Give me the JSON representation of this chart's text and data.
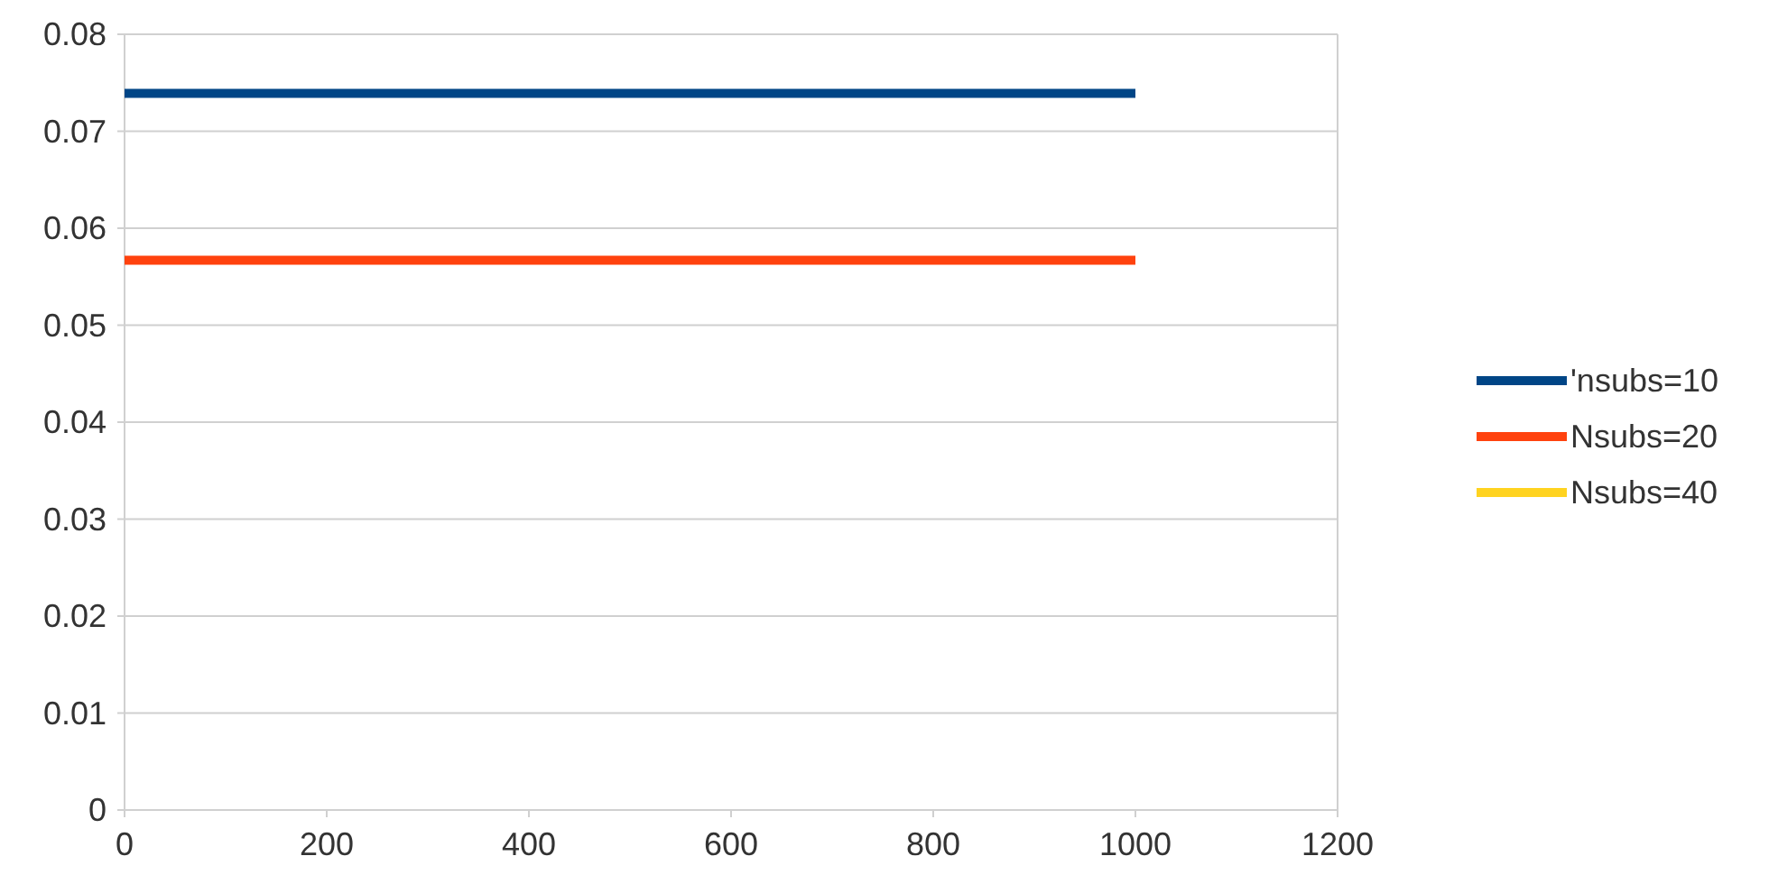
{
  "chart_data": {
    "type": "line",
    "x": [
      0,
      1000
    ],
    "series": [
      {
        "name": "'nsubs=10",
        "color": "#004586",
        "values": [
          0.0739,
          0.0739
        ]
      },
      {
        "name": "Nsubs=20",
        "color": "#ff420e",
        "values": [
          0.0567,
          0.0567
        ]
      },
      {
        "name": "Nsubs=40",
        "color": "#ffd320",
        "values": [
          null,
          null
        ]
      }
    ],
    "xlim": [
      0,
      1200
    ],
    "xticks": [
      0,
      200,
      400,
      600,
      800,
      1000,
      1200
    ],
    "ylim": [
      0,
      0.08
    ],
    "yticks": [
      0,
      0.01,
      0.02,
      0.03,
      0.04,
      0.05,
      0.06,
      0.07,
      0.08
    ],
    "grid": "y",
    "legend": "right",
    "marker": "none",
    "line_style": "solid"
  }
}
